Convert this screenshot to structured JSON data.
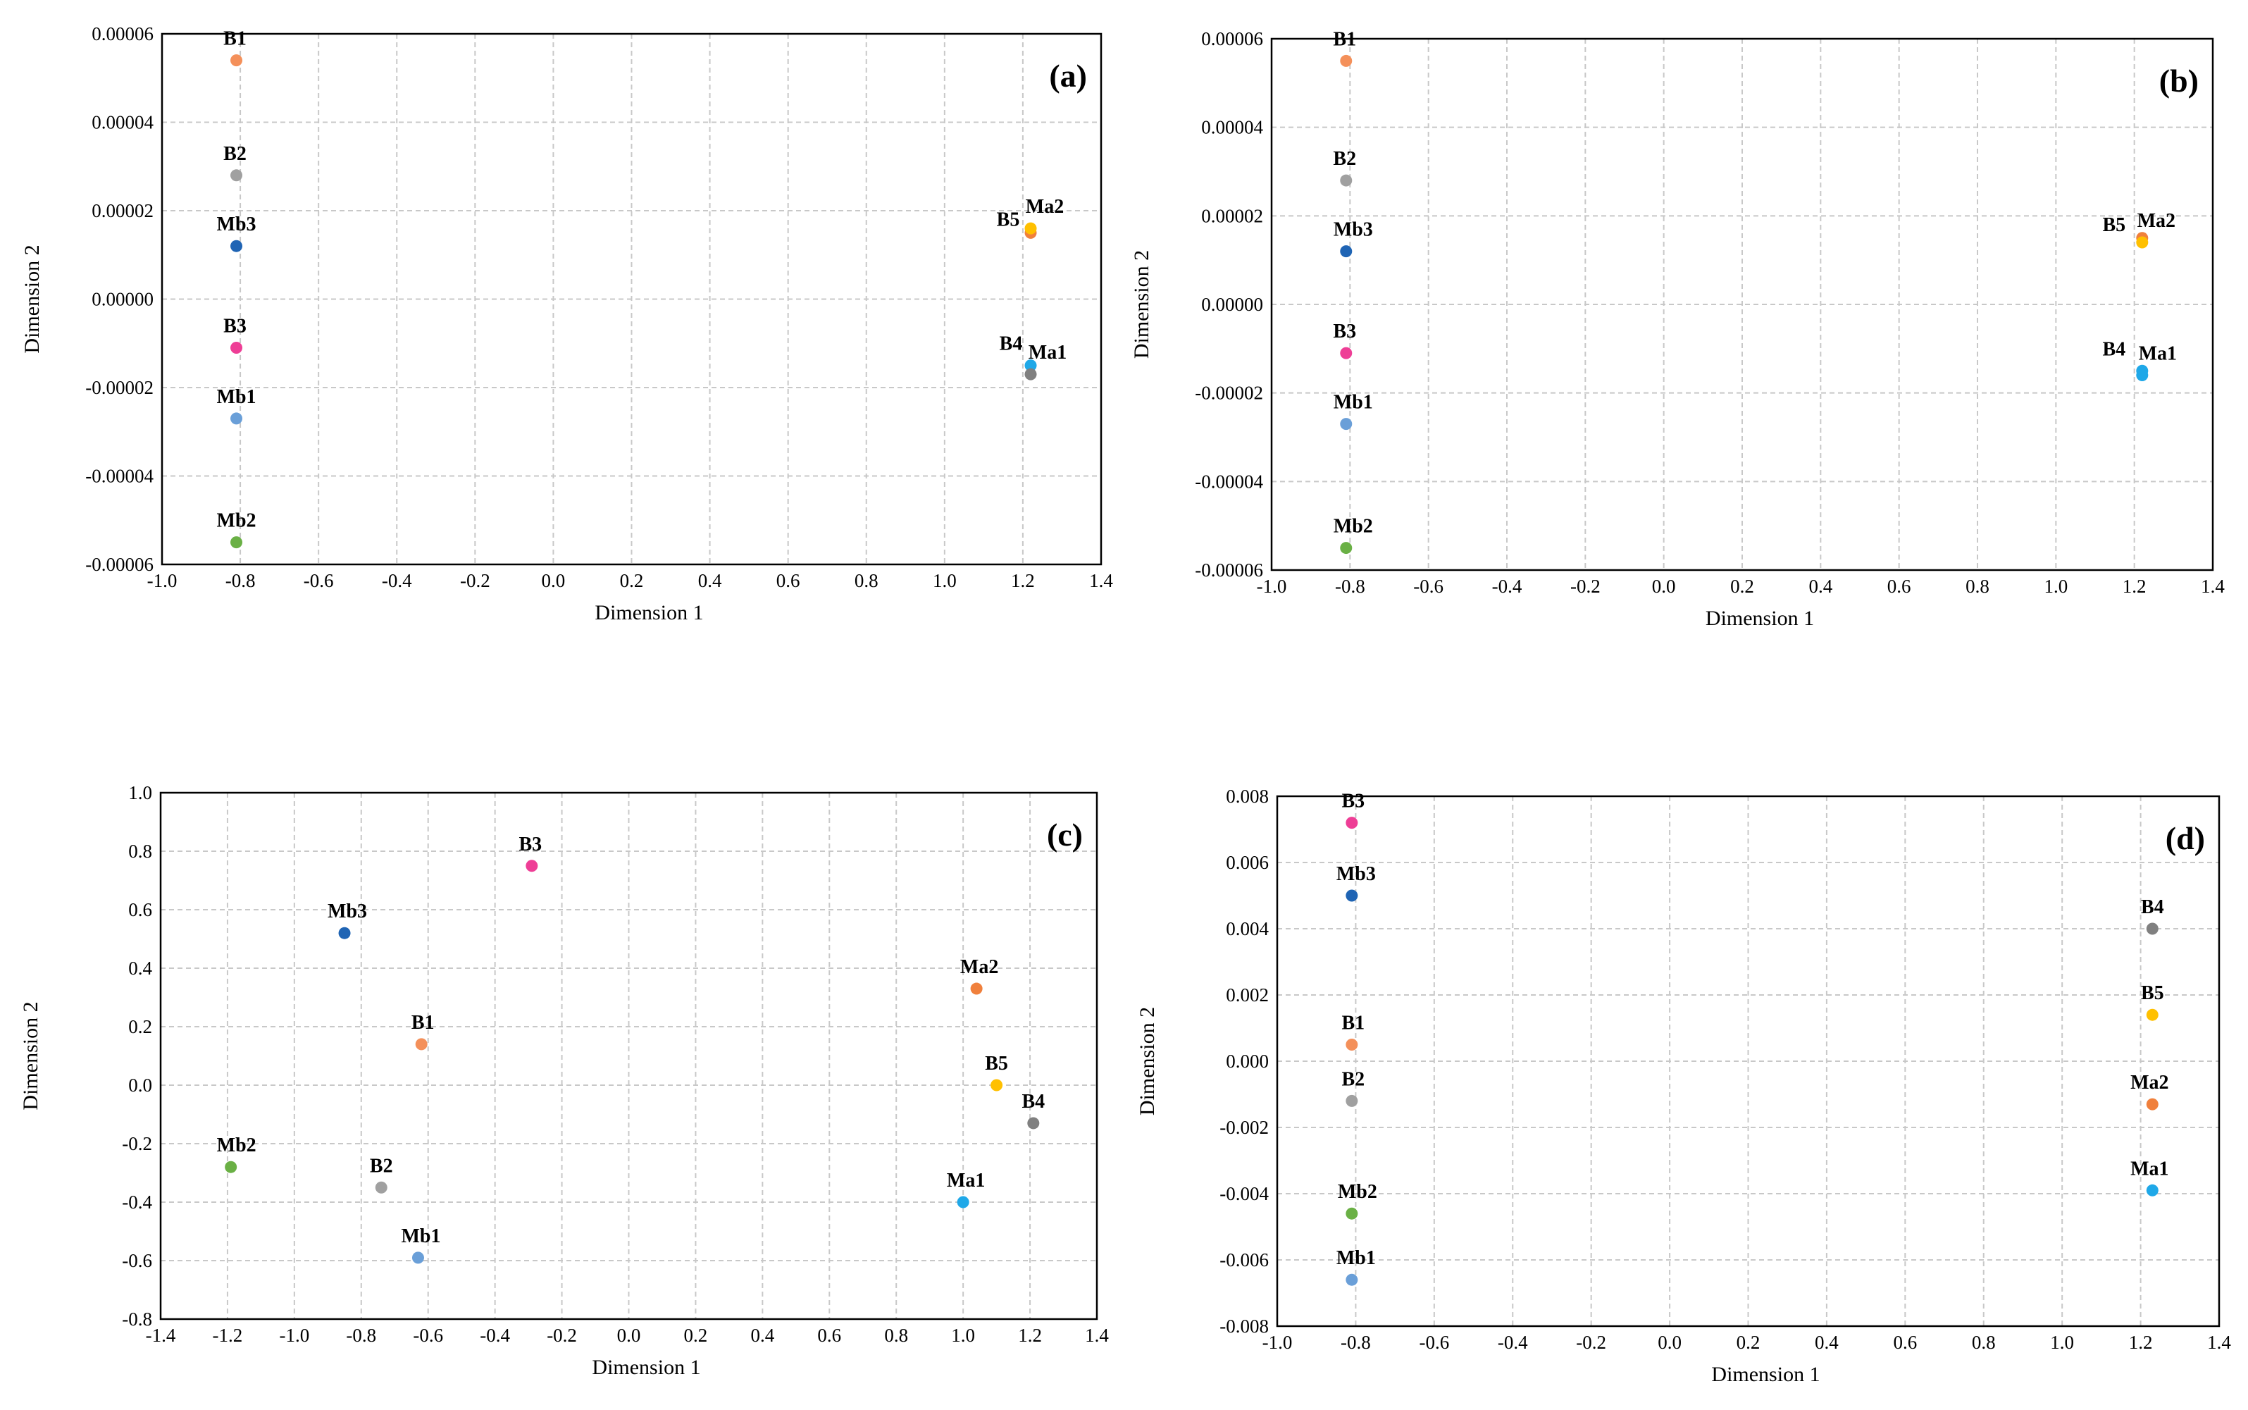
{
  "chart_data": [
    {
      "type": "scatter",
      "panel_label": "(a)",
      "xlabel": "Dimension 1",
      "ylabel": "Dimension 2",
      "xlim": [
        -1.0,
        1.4
      ],
      "ylim": [
        -6e-05,
        6e-05
      ],
      "grid": true,
      "x_ticks": [
        "-1.0",
        "-0.8",
        "-0.6",
        "-0.4",
        "-0.2",
        "0.0",
        "0.2",
        "0.4",
        "0.6",
        "0.8",
        "1.0",
        "1.2",
        "1.4"
      ],
      "y_ticks": [
        "0.00006",
        "0.00004",
        "0.00002",
        "0.00000",
        "-0.00002",
        "-0.00004",
        "-0.00006"
      ],
      "points": [
        {
          "label": "B1",
          "x": -0.81,
          "y": 5.4e-05,
          "color": "#f4905a"
        },
        {
          "label": "B2",
          "x": -0.81,
          "y": 2.8e-05,
          "color": "#a0a0a0"
        },
        {
          "label": "Mb3",
          "x": -0.81,
          "y": 1.2e-05,
          "color": "#1f64b4"
        },
        {
          "label": "B3",
          "x": -0.81,
          "y": -1.1e-05,
          "color": "#ee3e96"
        },
        {
          "label": "Mb1",
          "x": -0.81,
          "y": -2.7e-05,
          "color": "#6a9fd8"
        },
        {
          "label": "Mb2",
          "x": -0.81,
          "y": -5.5e-05,
          "color": "#6ab045"
        },
        {
          "label": "B5",
          "x": 1.22,
          "y": 1.5e-05,
          "color": "#f0803c"
        },
        {
          "label": "Ma2",
          "x": 1.22,
          "y": 1.6e-05,
          "color": "#ffc000"
        },
        {
          "label": "B4",
          "x": 1.22,
          "y": -1.5e-05,
          "color": "#1fa8e8"
        },
        {
          "label": "Ma1",
          "x": 1.22,
          "y": -1.7e-05,
          "color": "#808080"
        }
      ]
    },
    {
      "type": "scatter",
      "panel_label": "(b)",
      "xlabel": "Dimension 1",
      "ylabel": "Dimension 2",
      "xlim": [
        -1.0,
        1.4
      ],
      "ylim": [
        -6e-05,
        6e-05
      ],
      "grid": true,
      "x_ticks": [
        "-1.0",
        "-0.8",
        "-0.6",
        "-0.4",
        "-0.2",
        "0.0",
        "0.2",
        "0.4",
        "0.6",
        "0.8",
        "1.0",
        "1.2",
        "1.4"
      ],
      "y_ticks": [
        "0.00006",
        "0.00004",
        "0.00002",
        "0.00000",
        "-0.00002",
        "-0.00004",
        "-0.00006"
      ],
      "points": [
        {
          "label": "B1",
          "x": -0.81,
          "y": 5.5e-05,
          "color": "#f4905a"
        },
        {
          "label": "B2",
          "x": -0.81,
          "y": 2.8e-05,
          "color": "#a0a0a0"
        },
        {
          "label": "Mb3",
          "x": -0.81,
          "y": 1.2e-05,
          "color": "#1f64b4"
        },
        {
          "label": "B3",
          "x": -0.81,
          "y": -1.1e-05,
          "color": "#ee3e96"
        },
        {
          "label": "Mb1",
          "x": -0.81,
          "y": -2.7e-05,
          "color": "#6a9fd8"
        },
        {
          "label": "Mb2",
          "x": -0.81,
          "y": -5.5e-05,
          "color": "#6ab045"
        },
        {
          "label": "B5",
          "x": 1.22,
          "y": 1.5e-05,
          "color": "#f0803c"
        },
        {
          "label": "Ma2",
          "x": 1.22,
          "y": 1.4e-05,
          "color": "#ffc000"
        },
        {
          "label": "B4",
          "x": 1.22,
          "y": -1.5e-05,
          "color": "#1fa8e8"
        },
        {
          "label": "Ma1",
          "x": 1.22,
          "y": -1.6e-05,
          "color": "#1fa8e8"
        }
      ]
    },
    {
      "type": "scatter",
      "panel_label": "(c)",
      "xlabel": "Dimension 1",
      "ylabel": "Dimension 2",
      "xlim": [
        -1.4,
        1.4
      ],
      "ylim": [
        -0.8,
        1.0
      ],
      "grid": true,
      "x_ticks": [
        "-1.4",
        "-1.2",
        "-1.0",
        "-0.8",
        "-0.6",
        "-0.4",
        "-0.2",
        "0.0",
        "0.2",
        "0.4",
        "0.6",
        "0.8",
        "1.0",
        "1.2",
        "1.4"
      ],
      "y_ticks": [
        "1.0",
        "0.8",
        "0.6",
        "0.4",
        "0.2",
        "0.0",
        "-0.2",
        "-0.4",
        "-0.6",
        "-0.8"
      ],
      "points": [
        {
          "label": "B3",
          "x": -0.29,
          "y": 0.75,
          "color": "#ee3e96"
        },
        {
          "label": "Mb3",
          "x": -0.85,
          "y": 0.52,
          "color": "#1f64b4"
        },
        {
          "label": "B1",
          "x": -0.62,
          "y": 0.14,
          "color": "#f4905a"
        },
        {
          "label": "Mb2",
          "x": -1.19,
          "y": -0.28,
          "color": "#6ab045"
        },
        {
          "label": "B2",
          "x": -0.74,
          "y": -0.35,
          "color": "#a0a0a0"
        },
        {
          "label": "Mb1",
          "x": -0.63,
          "y": -0.59,
          "color": "#6a9fd8"
        },
        {
          "label": "Ma2",
          "x": 1.04,
          "y": 0.33,
          "color": "#f0803c"
        },
        {
          "label": "B5",
          "x": 1.1,
          "y": 0.0,
          "color": "#ffc000"
        },
        {
          "label": "B4",
          "x": 1.21,
          "y": -0.13,
          "color": "#808080"
        },
        {
          "label": "Ma1",
          "x": 1.0,
          "y": -0.4,
          "color": "#1fa8e8"
        }
      ]
    },
    {
      "type": "scatter",
      "panel_label": "(d)",
      "xlabel": "Dimension 1",
      "ylabel": "Dimension 2",
      "xlim": [
        -1.0,
        1.4
      ],
      "ylim": [
        -0.008,
        0.008
      ],
      "grid": true,
      "x_ticks": [
        "-1.0",
        "-0.8",
        "-0.6",
        "-0.4",
        "-0.2",
        "0.0",
        "0.2",
        "0.4",
        "0.6",
        "0.8",
        "1.0",
        "1.2",
        "1.4"
      ],
      "y_ticks": [
        "0.008",
        "0.006",
        "0.004",
        "0.002",
        "0.000",
        "-0.002",
        "-0.004",
        "-0.006",
        "-0.008"
      ],
      "points": [
        {
          "label": "B3",
          "x": -0.81,
          "y": 0.0072,
          "color": "#ee3e96"
        },
        {
          "label": "Mb3",
          "x": -0.81,
          "y": 0.005,
          "color": "#1f64b4"
        },
        {
          "label": "B1",
          "x": -0.81,
          "y": 0.0005,
          "color": "#f4905a"
        },
        {
          "label": "B2",
          "x": -0.81,
          "y": -0.0012,
          "color": "#a0a0a0"
        },
        {
          "label": "Mb2",
          "x": -0.81,
          "y": -0.0046,
          "color": "#6ab045"
        },
        {
          "label": "Mb1",
          "x": -0.81,
          "y": -0.0066,
          "color": "#6a9fd8"
        },
        {
          "label": "B4",
          "x": 1.23,
          "y": 0.004,
          "color": "#808080"
        },
        {
          "label": "B5",
          "x": 1.23,
          "y": 0.0014,
          "color": "#ffc000"
        },
        {
          "label": "Ma2",
          "x": 1.23,
          "y": -0.0013,
          "color": "#f0803c"
        },
        {
          "label": "Ma1",
          "x": 1.23,
          "y": -0.0039,
          "color": "#1fa8e8"
        }
      ]
    }
  ]
}
